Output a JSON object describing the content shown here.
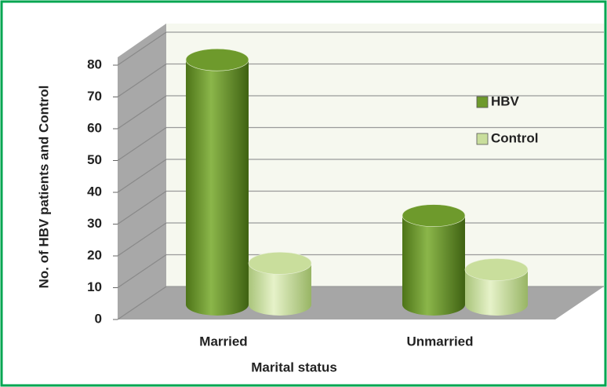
{
  "chart_data": {
    "type": "bar3d",
    "categories": [
      "Married",
      "Unmarried"
    ],
    "series": [
      {
        "name": "HBV",
        "color": "#6e9a2c",
        "values": [
          77,
          28
        ]
      },
      {
        "name": "Control",
        "color": "#c9de9c",
        "values": [
          13,
          11
        ]
      }
    ],
    "ylim": [
      0,
      80
    ],
    "yticks": [
      0,
      10,
      20,
      30,
      40,
      50,
      60,
      70,
      80
    ],
    "xlabel": "Marital status",
    "ylabel": "No. of HBV patients and Control",
    "grid": true,
    "legend": "right"
  }
}
